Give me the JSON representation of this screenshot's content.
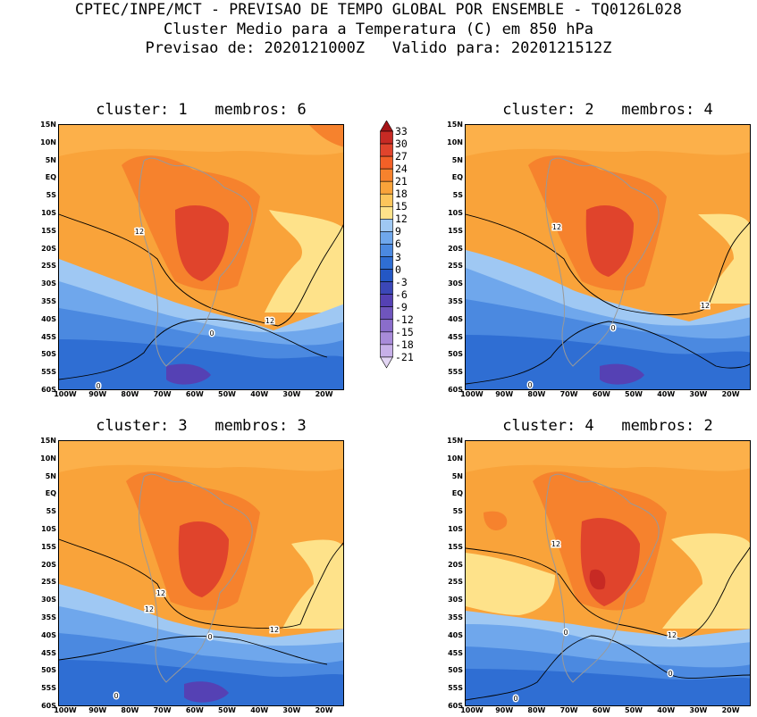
{
  "header": {
    "line1": "CPTEC/INPE/MCT - PREVISAO DE TEMPO GLOBAL POR ENSEMBLE - TQ0126L028",
    "line2": "Cluster Medio para a Temperatura (C) em 850 hPa",
    "line3": "Previsao de: 2020121000Z   Valido para: 2020121512Z"
  },
  "axes": {
    "lat_labels": [
      "15N",
      "10N",
      "5N",
      "EQ",
      "5S",
      "10S",
      "15S",
      "20S",
      "25S",
      "30S",
      "35S",
      "40S",
      "45S",
      "50S",
      "55S",
      "60S"
    ],
    "lon_labels": [
      "100W",
      "90W",
      "80W",
      "70W",
      "60W",
      "50W",
      "40W",
      "30W",
      "20W"
    ]
  },
  "panels": [
    {
      "title": "cluster: 1   membros: 6",
      "labels": [
        "12",
        "12",
        "0",
        "0"
      ]
    },
    {
      "title": "cluster: 2   membros: 4",
      "labels": [
        "12",
        "12",
        "0",
        "0"
      ]
    },
    {
      "title": "cluster: 3   membros: 3",
      "labels": [
        "12",
        "12",
        "12",
        "0",
        "0"
      ]
    },
    {
      "title": "cluster: 4   membros: 2",
      "labels": [
        "12",
        "12",
        "0",
        "0",
        "0"
      ]
    }
  ],
  "colorbar": {
    "labels": [
      "33",
      "30",
      "27",
      "24",
      "21",
      "18",
      "15",
      "12",
      "9",
      "6",
      "3",
      "0",
      "-3",
      "-6",
      "-9",
      "-12",
      "-15",
      "-18",
      "-21"
    ],
    "colors": [
      "#a51417",
      "#c72a24",
      "#e0442c",
      "#f26027",
      "#f6822d",
      "#f9a33a",
      "#fcc55b",
      "#fee28a",
      "#9fc8f3",
      "#6fa7ec",
      "#4b89e0",
      "#2f6ed3",
      "#2457c4",
      "#3b47b7",
      "#5541b4",
      "#6f55bd",
      "#8a6dcb",
      "#a88bd9",
      "#c7b0e8",
      "#e3d6f4"
    ]
  }
}
